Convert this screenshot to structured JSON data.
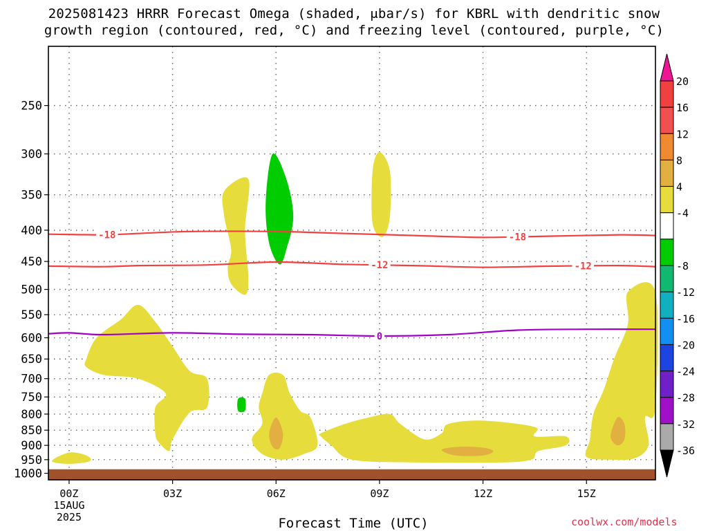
{
  "header": {
    "title_line1": "2025081423 HRRR Forecast Omega (shaded, μbar/s) for KBRL with dendritic snow",
    "title_line2": "growth region (contoured, red, °C) and freezing level (contoured, purple, °C)"
  },
  "footer": {
    "credit": "coolwx.com/models"
  },
  "chart_data": {
    "type": "time-height cross section",
    "xlabel": "Forecast Time (UTC)",
    "x_ticks": [
      {
        "hour": 0,
        "label": "00Z",
        "sublabels": [
          "15AUG",
          "2025"
        ]
      },
      {
        "hour": 3,
        "label": "03Z"
      },
      {
        "hour": 6,
        "label": "06Z"
      },
      {
        "hour": 9,
        "label": "09Z"
      },
      {
        "hour": 12,
        "label": "12Z"
      },
      {
        "hour": 15,
        "label": "15Z"
      }
    ],
    "xlim_hours": [
      -0.6,
      17
    ],
    "y_axis": {
      "scale": "log-pressure",
      "units": "hPa",
      "range": [
        1025,
        200
      ],
      "ticks": [
        250,
        300,
        350,
        400,
        450,
        500,
        550,
        600,
        650,
        700,
        750,
        800,
        850,
        900,
        950,
        1000
      ]
    },
    "grid": true,
    "ground_layer": {
      "color": "#a0522d",
      "from_hpa": 1025,
      "to_hpa": 985
    },
    "colorbar": {
      "position": "right",
      "levels": [
        20,
        16,
        12,
        8,
        4,
        -4,
        -8,
        -12,
        -16,
        -20,
        -24,
        -28,
        -32,
        -36
      ],
      "colors": [
        "#ee1493",
        "#f04040",
        "#f05050",
        "#f08a32",
        "#e2b040",
        "#e6dc3c",
        "#ffffff",
        "#00cc00",
        "#10b870",
        "#10b0c0",
        "#1090f0",
        "#1c44e0",
        "#7020c8",
        "#a010c8",
        "#aaaaaa",
        "#000000"
      ]
    },
    "contours": [
      {
        "name": "-18",
        "color": "#f04040",
        "label": "-18",
        "points": [
          [
            -0.6,
            406
          ],
          [
            1,
            407
          ],
          [
            2,
            405
          ],
          [
            3.5,
            402
          ],
          [
            6,
            402
          ],
          [
            8,
            405
          ],
          [
            10,
            408
          ],
          [
            12,
            411
          ],
          [
            14,
            409
          ],
          [
            16,
            407
          ],
          [
            17,
            408
          ]
        ],
        "label_hours": [
          1.1,
          13
        ]
      },
      {
        "name": "-12",
        "color": "#f04040",
        "label": "-12",
        "points": [
          [
            -0.6,
            458
          ],
          [
            1,
            459
          ],
          [
            2,
            457
          ],
          [
            4,
            456
          ],
          [
            6,
            451
          ],
          [
            8,
            455
          ],
          [
            10,
            457
          ],
          [
            12,
            460
          ],
          [
            14,
            458
          ],
          [
            16,
            457
          ],
          [
            17,
            459
          ]
        ],
        "label_hours": [
          9,
          14.9
        ]
      },
      {
        "name": "0",
        "color": "#a000c8",
        "label": "0",
        "points": [
          [
            -0.6,
            591
          ],
          [
            0,
            589
          ],
          [
            1,
            593
          ],
          [
            3,
            589
          ],
          [
            5,
            592
          ],
          [
            7,
            593
          ],
          [
            9,
            596
          ],
          [
            11,
            593
          ],
          [
            13,
            583
          ],
          [
            15,
            581
          ],
          [
            17,
            581
          ]
        ],
        "label_hours": [
          9
        ]
      }
    ],
    "omega_regions": [
      {
        "color": "#e6dc3c",
        "value_range": [
          4,
          8
        ],
        "points": [
          [
            -0.5,
            955
          ],
          [
            0,
            925
          ],
          [
            0.5,
            935
          ],
          [
            0.6,
            955
          ],
          [
            0,
            965
          ]
        ]
      },
      {
        "color": "#e6dc3c",
        "value_range": [
          4,
          8
        ],
        "points": [
          [
            0.5,
            650
          ],
          [
            0.8,
            600
          ],
          [
            1.5,
            560
          ],
          [
            2,
            530
          ],
          [
            2.5,
            565
          ],
          [
            3,
            620
          ],
          [
            3.5,
            680
          ],
          [
            4,
            700
          ],
          [
            4,
            780
          ],
          [
            3.5,
            795
          ],
          [
            3,
            880
          ],
          [
            2.9,
            920
          ],
          [
            2.6,
            890
          ],
          [
            2.5,
            860
          ],
          [
            2.5,
            780
          ],
          [
            2.8,
            740
          ],
          [
            2,
            700
          ],
          [
            1,
            690
          ],
          [
            0.5,
            670
          ]
        ]
      },
      {
        "color": "#e6dc3c",
        "value_range": [
          4,
          8
        ],
        "points": [
          [
            4.5,
            345
          ],
          [
            5.2,
            330
          ],
          [
            5.1,
            400
          ],
          [
            5.2,
            480
          ],
          [
            5.1,
            510
          ],
          [
            4.7,
            490
          ],
          [
            4.6,
            460
          ],
          [
            4.7,
            430
          ],
          [
            4.5,
            380
          ]
        ]
      },
      {
        "color": "#00cc00",
        "value_range": [
          -8,
          -4
        ],
        "points": [
          [
            5.9,
            300
          ],
          [
            6.3,
            330
          ],
          [
            6.5,
            380
          ],
          [
            6.3,
            430
          ],
          [
            6.1,
            455
          ],
          [
            5.8,
            420
          ],
          [
            5.7,
            360
          ]
        ]
      },
      {
        "color": "#00cc00",
        "value_range": [
          -8,
          -4
        ],
        "points": [
          [
            4.9,
            755
          ],
          [
            5.1,
            755
          ],
          [
            5.1,
            790
          ],
          [
            4.9,
            790
          ]
        ]
      },
      {
        "color": "#e6dc3c",
        "value_range": [
          4,
          8
        ],
        "points": [
          [
            9,
            298
          ],
          [
            9.3,
            320
          ],
          [
            9.3,
            380
          ],
          [
            9.1,
            410
          ],
          [
            8.8,
            390
          ],
          [
            8.8,
            320
          ]
        ]
      },
      {
        "color": "#e6dc3c",
        "value_range": [
          4,
          8
        ],
        "points": [
          [
            5.6,
            740
          ],
          [
            5.8,
            690
          ],
          [
            6.2,
            690
          ],
          [
            6.4,
            740
          ],
          [
            6.7,
            790
          ],
          [
            7,
            810
          ],
          [
            7.2,
            900
          ],
          [
            6.8,
            930
          ],
          [
            6.2,
            950
          ],
          [
            5.6,
            930
          ],
          [
            5.3,
            880
          ],
          [
            5.6,
            830
          ],
          [
            5.5,
            780
          ]
        ]
      },
      {
        "color": "#e2b040",
        "value_range": [
          8,
          12
        ],
        "points": [
          [
            6,
            810
          ],
          [
            6.2,
            860
          ],
          [
            6.1,
            910
          ],
          [
            5.9,
            905
          ],
          [
            5.8,
            860
          ]
        ]
      },
      {
        "color": "#e6dc3c",
        "value_range": [
          4,
          8
        ],
        "points": [
          [
            7.3,
            860
          ],
          [
            8,
            830
          ],
          [
            8.7,
            810
          ],
          [
            9.3,
            800
          ],
          [
            9.6,
            830
          ],
          [
            10.3,
            880
          ],
          [
            10.8,
            860
          ],
          [
            11,
            830
          ],
          [
            12,
            820
          ],
          [
            13.5,
            840
          ],
          [
            13.5,
            870
          ],
          [
            14.4,
            870
          ],
          [
            14.4,
            900
          ],
          [
            13.6,
            920
          ],
          [
            13.4,
            950
          ],
          [
            12.5,
            960
          ],
          [
            10,
            960
          ],
          [
            8.2,
            950
          ],
          [
            7.6,
            900
          ],
          [
            7.3,
            870
          ]
        ]
      },
      {
        "color": "#e2b040",
        "value_range": [
          8,
          12
        ],
        "points": [
          [
            10.8,
            915
          ],
          [
            11.3,
            905
          ],
          [
            12,
            908
          ],
          [
            12.3,
            920
          ],
          [
            12,
            935
          ],
          [
            11.2,
            935
          ]
        ]
      },
      {
        "color": "#e6dc3c",
        "value_range": [
          4,
          8
        ],
        "points": [
          [
            16.2,
            505
          ],
          [
            17,
            505
          ],
          [
            17,
            780
          ],
          [
            16.7,
            810
          ],
          [
            16.8,
            900
          ],
          [
            16.4,
            945
          ],
          [
            15.7,
            950
          ],
          [
            15,
            940
          ],
          [
            15.1,
            880
          ],
          [
            15.2,
            800
          ],
          [
            15.5,
            730
          ],
          [
            15.8,
            650
          ],
          [
            16.2,
            570
          ]
        ]
      },
      {
        "color": "#e2b040",
        "value_range": [
          8,
          12
        ],
        "points": [
          [
            15.9,
            810
          ],
          [
            16.1,
            830
          ],
          [
            16.1,
            880
          ],
          [
            15.9,
            900
          ],
          [
            15.7,
            870
          ]
        ]
      }
    ]
  }
}
